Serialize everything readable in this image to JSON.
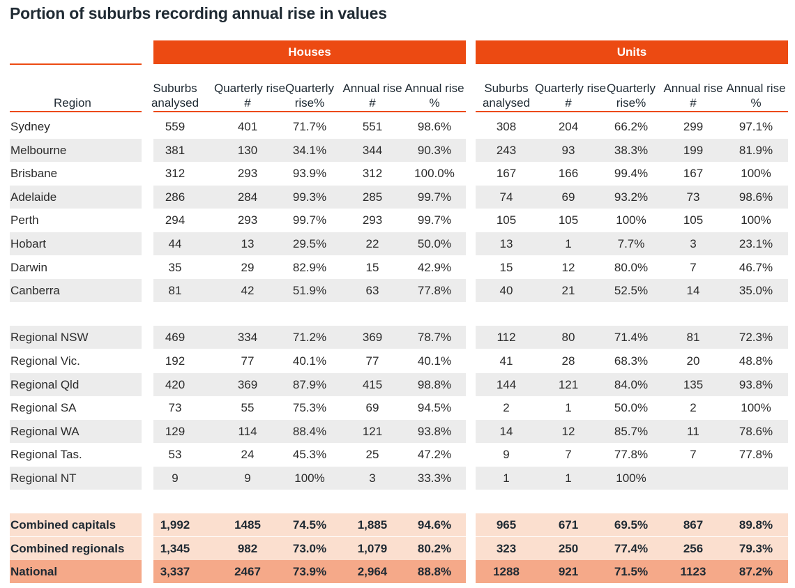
{
  "title": "Portion of suburbs recording annual rise in values",
  "groups": {
    "houses": "Houses",
    "units": "Units"
  },
  "colors": {
    "accent": "#ec4a12",
    "stripe": "#ececec",
    "summary": "#fbdfcf",
    "national": "#f5a989"
  },
  "chart_data": {
    "type": "table",
    "title": "Portion of suburbs recording annual rise in values",
    "region_header": "Region",
    "column_groups": [
      "Houses",
      "Units"
    ],
    "columns": [
      "Suburbs analysed",
      "Quarterly rise #",
      "Quarterly rise%",
      "Annual rise #",
      "Annual rise %",
      "Suburbs analysed",
      "Quarterly rise #",
      "Quarterly rise%",
      "Annual rise #",
      "Annual rise %"
    ],
    "rows": [
      {
        "region": "Sydney",
        "values": [
          "559",
          "401",
          "71.7%",
          "551",
          "98.6%",
          "308",
          "204",
          "66.2%",
          "299",
          "97.1%"
        ]
      },
      {
        "region": "Melbourne",
        "values": [
          "381",
          "130",
          "34.1%",
          "344",
          "90.3%",
          "243",
          "93",
          "38.3%",
          "199",
          "81.9%"
        ]
      },
      {
        "region": "Brisbane",
        "values": [
          "312",
          "293",
          "93.9%",
          "312",
          "100.0%",
          "167",
          "166",
          "99.4%",
          "167",
          "100%"
        ]
      },
      {
        "region": "Adelaide",
        "values": [
          "286",
          "284",
          "99.3%",
          "285",
          "99.7%",
          "74",
          "69",
          "93.2%",
          "73",
          "98.6%"
        ]
      },
      {
        "region": "Perth",
        "values": [
          "294",
          "293",
          "99.7%",
          "293",
          "99.7%",
          "105",
          "105",
          "100%",
          "105",
          "100%"
        ]
      },
      {
        "region": "Hobart",
        "values": [
          "44",
          "13",
          "29.5%",
          "22",
          "50.0%",
          "13",
          "1",
          "7.7%",
          "3",
          "23.1%"
        ]
      },
      {
        "region": "Darwin",
        "values": [
          "35",
          "29",
          "82.9%",
          "15",
          "42.9%",
          "15",
          "12",
          "80.0%",
          "7",
          "46.7%"
        ]
      },
      {
        "region": "Canberra",
        "values": [
          "81",
          "42",
          "51.9%",
          "63",
          "77.8%",
          "40",
          "21",
          "52.5%",
          "14",
          "35.0%"
        ]
      },
      {
        "region": "",
        "values": [
          "",
          "",
          "",
          "",
          "",
          "",
          "",
          "",
          "",
          ""
        ],
        "spacer": true
      },
      {
        "region": "Regional NSW",
        "values": [
          "469",
          "334",
          "71.2%",
          "369",
          "78.7%",
          "112",
          "80",
          "71.4%",
          "81",
          "72.3%"
        ]
      },
      {
        "region": "Regional Vic.",
        "values": [
          "192",
          "77",
          "40.1%",
          "77",
          "40.1%",
          "41",
          "28",
          "68.3%",
          "20",
          "48.8%"
        ]
      },
      {
        "region": "Regional Qld",
        "values": [
          "420",
          "369",
          "87.9%",
          "415",
          "98.8%",
          "144",
          "121",
          "84.0%",
          "135",
          "93.8%"
        ]
      },
      {
        "region": "Regional SA",
        "values": [
          "73",
          "55",
          "75.3%",
          "69",
          "94.5%",
          "2",
          "1",
          "50.0%",
          "2",
          "100%"
        ]
      },
      {
        "region": "Regional WA",
        "values": [
          "129",
          "114",
          "88.4%",
          "121",
          "93.8%",
          "14",
          "12",
          "85.7%",
          "11",
          "78.6%"
        ]
      },
      {
        "region": "Regional Tas.",
        "values": [
          "53",
          "24",
          "45.3%",
          "25",
          "47.2%",
          "9",
          "7",
          "77.8%",
          "7",
          "77.8%"
        ]
      },
      {
        "region": "Regional NT",
        "values": [
          "9",
          "9",
          "100%",
          "3",
          "33.3%",
          "1",
          "1",
          "100%",
          "",
          ""
        ]
      },
      {
        "region": "",
        "values": [
          "",
          "",
          "",
          "",
          "",
          "",
          "",
          "",
          "",
          ""
        ],
        "spacer": true
      },
      {
        "region": "Combined capitals",
        "values": [
          "1,992",
          "1485",
          "74.5%",
          "1,885",
          "94.6%",
          "965",
          "671",
          "69.5%",
          "867",
          "89.8%"
        ],
        "summary": "light"
      },
      {
        "region": "Combined regionals",
        "values": [
          "1,345",
          "982",
          "73.0%",
          "1,079",
          "80.2%",
          "323",
          "250",
          "77.4%",
          "256",
          "79.3%"
        ],
        "summary": "light"
      },
      {
        "region": "National",
        "values": [
          "3,337",
          "2467",
          "73.9%",
          "2,964",
          "88.8%",
          "1288",
          "921",
          "71.5%",
          "1123",
          "87.2%"
        ],
        "summary": "dark"
      }
    ]
  }
}
